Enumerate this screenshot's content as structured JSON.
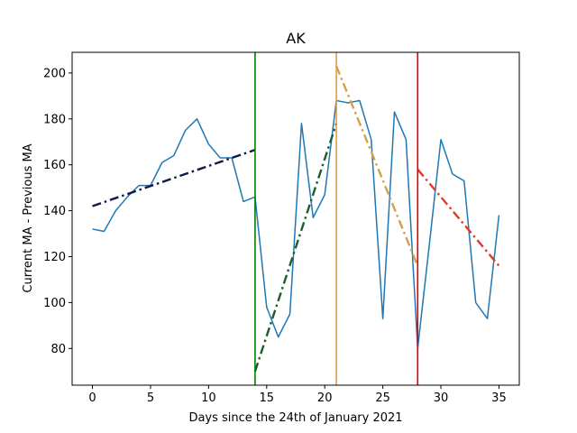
{
  "chart_data": {
    "type": "line",
    "title": "AK",
    "xlabel": "Days since the 24th of January 2021",
    "ylabel": "Current MA - Previous MA",
    "xlim": [
      -1.75,
      36.75
    ],
    "ylim": [
      64,
      209
    ],
    "xticks": [
      0,
      5,
      10,
      15,
      20,
      25,
      30,
      35
    ],
    "yticks": [
      80,
      100,
      120,
      140,
      160,
      180,
      200
    ],
    "grid": false,
    "legend": "none",
    "series": [
      {
        "style": "solid",
        "color": "#1f77b4",
        "x": [
          0,
          1,
          2,
          3,
          4,
          5,
          6,
          7,
          8,
          9,
          10,
          11,
          12,
          13,
          14,
          15,
          16,
          17,
          18,
          19,
          20,
          21,
          22,
          23,
          24,
          25,
          26,
          27,
          28,
          29,
          30,
          31,
          32,
          33,
          34,
          35
        ],
        "y": [
          132,
          131,
          140,
          146,
          151,
          151,
          161,
          164,
          175,
          180,
          169,
          163,
          163,
          144,
          146,
          98,
          85,
          95,
          178,
          137,
          147,
          188,
          187,
          188,
          171,
          93,
          183,
          171,
          80,
          125,
          171,
          156,
          153,
          100,
          93,
          138
        ]
      },
      {
        "style": "dashdot",
        "color": "#0d1a4a",
        "x": [
          0,
          14
        ],
        "y": [
          142,
          166.5
        ]
      },
      {
        "style": "dashdot",
        "color": "#1c5e2a",
        "x": [
          14,
          21
        ],
        "y": [
          70,
          178
        ]
      },
      {
        "style": "dashdot",
        "color": "#d4a04a",
        "x": [
          21,
          28
        ],
        "y": [
          203,
          116
        ]
      },
      {
        "style": "dashdot",
        "color": "#e03a30",
        "x": [
          28,
          35
        ],
        "y": [
          158,
          116
        ]
      }
    ],
    "vertical_lines": [
      {
        "x": 14,
        "color": "#008000"
      },
      {
        "x": 21,
        "color": "#e69c3c"
      },
      {
        "x": 28,
        "color": "#e60000"
      }
    ]
  }
}
